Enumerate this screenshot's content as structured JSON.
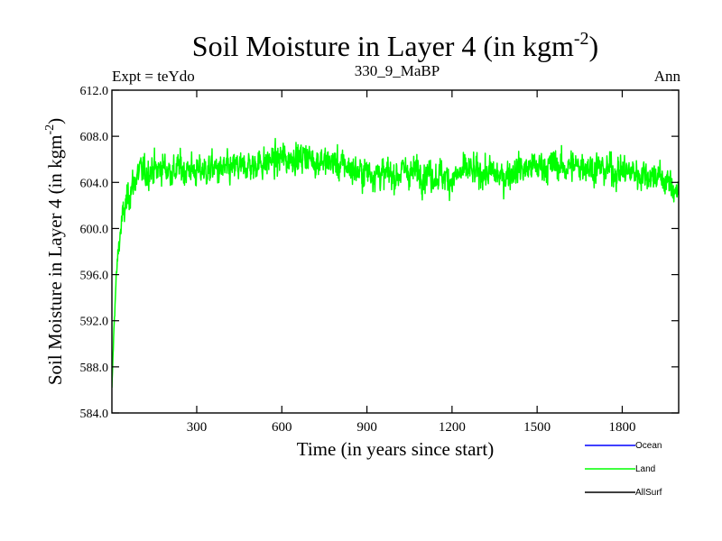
{
  "header": {
    "title_main": "Soil Moisture in Layer 4 (in kgm",
    "title_sup": "-2",
    "title_close": ")",
    "left_label": "Expt = teYdo",
    "center_label": "330_9_MaBP",
    "right_label": "Ann"
  },
  "axes": {
    "xlabel": "Time (in years since start)",
    "ylabel_main": "Soil Moisture in Layer 4 (in kgm",
    "ylabel_sup": "-2",
    "ylabel_close": ")"
  },
  "legend": [
    {
      "label": "Ocean",
      "color": "#0000ff"
    },
    {
      "label": "Land",
      "color": "#00ff00"
    },
    {
      "label": "AllSurf",
      "color": "#000000"
    }
  ],
  "chart_data": {
    "type": "line",
    "x_range": [
      1,
      1999
    ],
    "ylim": [
      584.0,
      612.0
    ],
    "xticks": [
      300,
      600,
      900,
      1200,
      1500,
      1800
    ],
    "xtick_labels": [
      "300",
      "600",
      "900",
      "1200",
      "1500",
      "1800"
    ],
    "yticks": [
      584.0,
      588.0,
      592.0,
      596.0,
      600.0,
      604.0,
      608.0,
      612.0
    ],
    "ytick_labels": [
      "584.0",
      "588.0",
      "592.0",
      "596.0",
      "600.0",
      "604.0",
      "608.0",
      "612.0"
    ],
    "grid": false,
    "legend_position": "bottom-right",
    "series": [
      {
        "name": "Land",
        "color": "#00ff00",
        "x": [
          1,
          5,
          10,
          15,
          20,
          25,
          30,
          35,
          40,
          50,
          60,
          70,
          80,
          90,
          100,
          120,
          140,
          160,
          180,
          200,
          220,
          240,
          260,
          280,
          300,
          320,
          340,
          360,
          380,
          400,
          420,
          440,
          460,
          480,
          500,
          520,
          540,
          560,
          580,
          600,
          620,
          640,
          660,
          680,
          700,
          720,
          740,
          760,
          780,
          800,
          820,
          840,
          860,
          880,
          900,
          920,
          940,
          960,
          980,
          1000,
          1020,
          1040,
          1060,
          1080,
          1100,
          1120,
          1140,
          1160,
          1180,
          1200,
          1220,
          1240,
          1260,
          1280,
          1300,
          1320,
          1340,
          1360,
          1380,
          1400,
          1420,
          1440,
          1460,
          1480,
          1500,
          1520,
          1540,
          1560,
          1580,
          1600,
          1620,
          1640,
          1660,
          1680,
          1700,
          1720,
          1740,
          1760,
          1780,
          1800,
          1820,
          1840,
          1860,
          1880,
          1900,
          1920,
          1940,
          1960,
          1980,
          1999
        ],
        "values": [
          586.0,
          589.0,
          592.5,
          595.0,
          597.0,
          598.5,
          599.5,
          600.5,
          601.0,
          602.0,
          603.0,
          603.5,
          604.0,
          604.5,
          605.0,
          604.8,
          605.2,
          605.0,
          605.4,
          605.1,
          604.9,
          605.3,
          605.0,
          605.2,
          604.8,
          605.1,
          605.0,
          605.3,
          604.9,
          605.2,
          605.0,
          605.4,
          605.1,
          605.6,
          605.3,
          605.8,
          605.6,
          606.0,
          605.7,
          606.2,
          605.9,
          606.3,
          606.0,
          606.4,
          606.1,
          605.8,
          606.0,
          605.6,
          605.8,
          605.4,
          605.6,
          605.2,
          605.0,
          604.8,
          605.0,
          604.7,
          604.9,
          604.6,
          604.8,
          604.5,
          604.9,
          605.1,
          604.8,
          605.0,
          604.6,
          604.8,
          604.5,
          604.7,
          604.4,
          604.2,
          604.6,
          604.9,
          605.1,
          604.8,
          605.0,
          604.7,
          604.9,
          604.6,
          604.4,
          604.8,
          605.0,
          605.3,
          605.1,
          605.4,
          605.2,
          605.5,
          605.3,
          605.6,
          605.4,
          605.2,
          605.5,
          605.3,
          605.6,
          605.4,
          605.1,
          605.3,
          605.0,
          605.2,
          604.9,
          605.1,
          604.8,
          605.0,
          604.6,
          604.8,
          604.5,
          604.7,
          604.3,
          604.0,
          603.5,
          603.2
        ]
      }
    ]
  }
}
